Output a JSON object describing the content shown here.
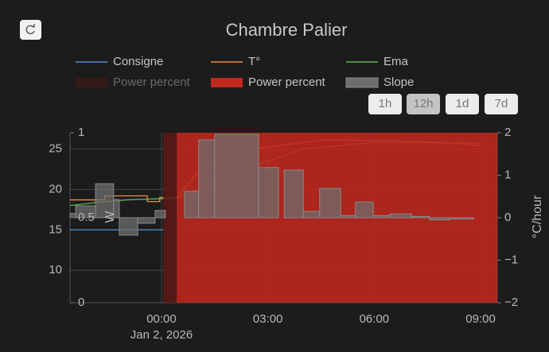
{
  "chart_data": {
    "type": "line",
    "title": "Chambre Palier",
    "xlim": [
      -2.58,
      9.47
    ],
    "xticks": [
      {
        "value": 0,
        "label": "00:00"
      },
      {
        "value": 3,
        "label": "03:00"
      },
      {
        "value": 6,
        "label": "06:00"
      },
      {
        "value": 9,
        "label": "09:00"
      }
    ],
    "xtick_sublabel": "Jan 2, 2026",
    "ylim": [
      6,
      27
    ],
    "yticks": [
      10,
      15,
      20,
      25
    ],
    "y2lim": [
      -2,
      2
    ],
    "y2ticks": [
      2,
      1,
      0,
      {
        "value": -1,
        "label": "−1"
      },
      {
        "value": -2,
        "label": "−2"
      }
    ],
    "y2label": "°C/hour",
    "y3lim": [
      0,
      1
    ],
    "y3ticks": [
      0,
      0.5,
      1
    ],
    "y3label": "W",
    "grid": true,
    "series": [
      {
        "name": "Consigne",
        "color": "#4e8fd0",
        "kind": "line",
        "axis": "y",
        "x": [
          -2.58,
          0.05
        ],
        "values": [
          15,
          15
        ]
      },
      {
        "name": "T°",
        "color": "#f08a4b",
        "kind": "line",
        "axis": "y",
        "x": [
          -2.58,
          -1.6,
          -1.6,
          -0.4,
          -0.4,
          -0.05,
          -0.05,
          0.43,
          1.2,
          2.0,
          3.0,
          4.5,
          6.5,
          8.0,
          9.0
        ],
        "values": [
          18.7,
          18.7,
          19.2,
          19.2,
          18.5,
          18.5,
          19.0,
          19.0,
          23,
          24.7,
          25.2,
          26.1,
          26.0,
          25.8,
          25.4
        ]
      },
      {
        "name": "Ema",
        "color": "#5bb84a",
        "kind": "line",
        "axis": "y",
        "x": [
          -2.58,
          -1.8,
          -1.0,
          -0.4,
          0.43,
          2,
          4,
          6,
          9
        ],
        "values": [
          18.0,
          18.4,
          18.7,
          18.8,
          18.9,
          22,
          25,
          25.8,
          25.7
        ]
      },
      {
        "name": "Power percent",
        "color": "#5a1a17",
        "kind": "step",
        "axis": "y3",
        "hidden": true,
        "bins": [
          -2.58,
          0.05,
          0.43,
          9.47
        ],
        "values": [
          0,
          1,
          0
        ]
      },
      {
        "name": "Power percent",
        "color": "#c0281e",
        "kind": "step",
        "axis": "y3",
        "bins": [
          -2.58,
          0.43,
          9.47
        ],
        "values": [
          0,
          1
        ]
      },
      {
        "name": "Slope",
        "color": "#6e6e6e",
        "kind": "step",
        "axis": "y2",
        "bins": [
          -2.58,
          -2.42,
          -1.86,
          -1.35,
          -1.19,
          -0.67,
          -0.18,
          0.11,
          0.65,
          1.05,
          1.5,
          2.74,
          3.3,
          3.46,
          4.0,
          4.46,
          5.05,
          5.47,
          5.97,
          6.44,
          7.05,
          7.56,
          8.12,
          8.8
        ],
        "values": [
          0.1,
          0.28,
          0.8,
          0.43,
          -0.41,
          -0.13,
          0.17,
          0,
          0.62,
          1.83,
          1.96,
          1.18,
          0,
          1.12,
          0.15,
          0.69,
          0.05,
          0.37,
          0.05,
          0.09,
          0.03,
          -0.05,
          -0.03
        ]
      }
    ]
  },
  "controls": {
    "range_buttons": [
      "1h",
      "12h",
      "1d",
      "7d"
    ],
    "active_range": "12h"
  }
}
